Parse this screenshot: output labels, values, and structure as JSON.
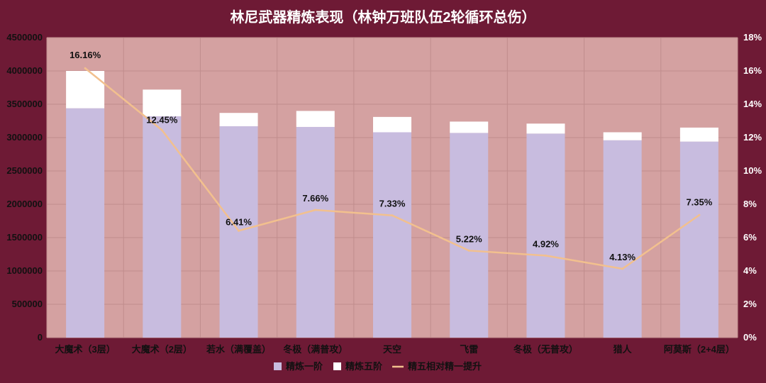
{
  "chart_data": {
    "type": "bar",
    "title": "林尼武器精炼表现（林钟万班队伍2轮循环总伤）",
    "categories": [
      "大魔术（3层）",
      "大魔术（2层）",
      "若水（满覆盖）",
      "冬极（满普攻）",
      "天空",
      "飞雷",
      "冬极（无普攻）",
      "猎人",
      "阿莫斯（2+4层）"
    ],
    "series": [
      {
        "name": "精炼一阶",
        "type": "bar",
        "stack": "a",
        "color": "#c8bcdf",
        "values": [
          3440000,
          3320000,
          3170000,
          3160000,
          3080000,
          3070000,
          3060000,
          2960000,
          2940000
        ]
      },
      {
        "name": "精炼五阶",
        "type": "bar",
        "stack": "a",
        "color": "#ffffff",
        "values": [
          560000,
          400000,
          200000,
          240000,
          230000,
          170000,
          150000,
          120000,
          210000
        ]
      },
      {
        "name": "精五相对精一提升",
        "type": "line",
        "axis": "right",
        "color": "#f2c08e",
        "values": [
          16.16,
          12.45,
          6.41,
          7.66,
          7.33,
          5.22,
          4.92,
          4.13,
          7.35
        ]
      }
    ],
    "data_labels": [
      "16.16%",
      "12.45%",
      "6.41%",
      "7.66%",
      "7.33%",
      "5.22%",
      "4.92%",
      "4.13%",
      "7.35%"
    ],
    "yticks_left": [
      "0",
      "500000",
      "1000000",
      "1500000",
      "2000000",
      "2500000",
      "3000000",
      "3500000",
      "4000000",
      "4500000"
    ],
    "yticks_right": [
      "0%",
      "2%",
      "4%",
      "6%",
      "8%",
      "10%",
      "12%",
      "14%",
      "16%",
      "18%"
    ],
    "ylim_left": [
      0,
      4500000
    ],
    "ylim_right": [
      0,
      18
    ],
    "grid": true,
    "legend": "bottom-center",
    "plot_bg": "#d4a1a1",
    "bg": "#6e1a35"
  }
}
